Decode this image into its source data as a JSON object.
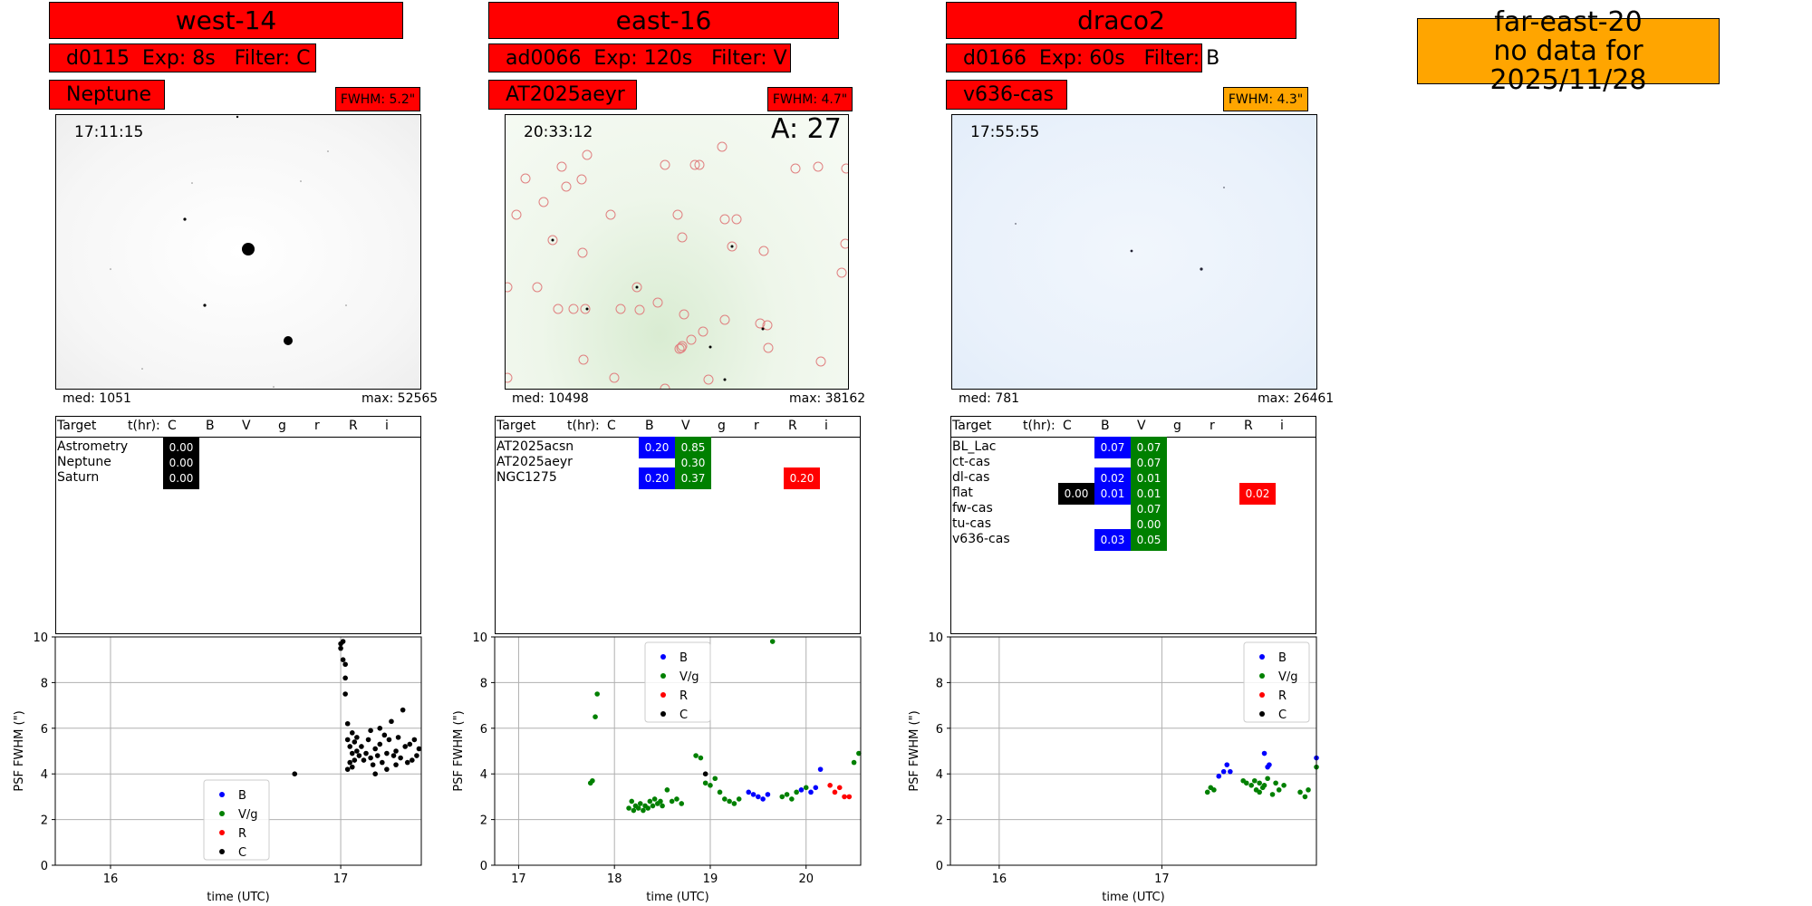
{
  "colors": {
    "header_red": "#ff0000",
    "header_orange": "#ffa500",
    "B": "#0000ff",
    "V": "#008000",
    "R": "#ff0000",
    "C": "#000000"
  },
  "far": {
    "line1": "far-east-20",
    "line2": "no data for 2025/11/28"
  },
  "panels": [
    {
      "title": "west-14",
      "exposure": "d0115  Exp: 8s   Filter: C",
      "target": "Neptune",
      "fwhm": "FWHM: 5.2\"",
      "fwhm_color": "red",
      "timestamp": "17:11:15",
      "annotation": "",
      "image_tint": "gray",
      "med": "med: 1051",
      "max": "max: 52565",
      "table": {
        "headers": [
          "Target",
          "t(hr):",
          "C",
          "B",
          "V",
          "g",
          "r",
          "R",
          "i"
        ],
        "rows": [
          {
            "name": "Astrometry",
            "cells": [
              {
                "col": "C",
                "value": "0.00"
              }
            ]
          },
          {
            "name": "Neptune",
            "cells": [
              {
                "col": "C",
                "value": "0.00"
              }
            ]
          },
          {
            "name": "Saturn",
            "cells": [
              {
                "col": "C",
                "value": "0.00"
              }
            ]
          }
        ]
      },
      "legend_position": "lower-center"
    },
    {
      "title": "east-16",
      "exposure": "ad0066  Exp: 120s   Filter: V",
      "target": "AT2025aeyr",
      "fwhm": "FWHM: 4.7\"",
      "fwhm_color": "red",
      "timestamp": "20:33:12",
      "annotation": "A: 27",
      "image_tint": "green",
      "med": "med: 10498",
      "max": "max: 38162",
      "table": {
        "headers": [
          "Target",
          "t(hr):",
          "C",
          "B",
          "V",
          "g",
          "r",
          "R",
          "i"
        ],
        "rows": [
          {
            "name": "AT2025acsn",
            "cells": [
              {
                "col": "B",
                "value": "0.20"
              },
              {
                "col": "V",
                "value": "0.85"
              }
            ]
          },
          {
            "name": "AT2025aeyr",
            "cells": [
              {
                "col": "V",
                "value": "0.30"
              }
            ]
          },
          {
            "name": "NGC1275",
            "cells": [
              {
                "col": "B",
                "value": "0.20"
              },
              {
                "col": "V",
                "value": "0.37"
              },
              {
                "col": "R",
                "value": "0.20"
              }
            ]
          }
        ]
      },
      "legend_position": "upper-center"
    },
    {
      "title": "draco2",
      "exposure": "d0166  Exp: 60s   Filter: B",
      "target": "v636-cas",
      "fwhm": "FWHM: 4.3\"",
      "fwhm_color": "orange",
      "timestamp": "17:55:55",
      "annotation": "",
      "image_tint": "blue",
      "med": "med: 781",
      "max": "max: 26461",
      "table": {
        "headers": [
          "Target",
          "t(hr):",
          "C",
          "B",
          "V",
          "g",
          "r",
          "R",
          "i"
        ],
        "rows": [
          {
            "name": "BL_Lac",
            "cells": [
              {
                "col": "B",
                "value": "0.07"
              },
              {
                "col": "V",
                "value": "0.07"
              }
            ]
          },
          {
            "name": "ct-cas",
            "cells": [
              {
                "col": "V",
                "value": "0.07"
              }
            ]
          },
          {
            "name": "dl-cas",
            "cells": [
              {
                "col": "B",
                "value": "0.02"
              },
              {
                "col": "V",
                "value": "0.01"
              }
            ]
          },
          {
            "name": "flat",
            "cells": [
              {
                "col": "C",
                "value": "0.00"
              },
              {
                "col": "B",
                "value": "0.01"
              },
              {
                "col": "V",
                "value": "0.01"
              },
              {
                "col": "R",
                "value": "0.02"
              }
            ]
          },
          {
            "name": "fw-cas",
            "cells": [
              {
                "col": "V",
                "value": "0.07"
              }
            ]
          },
          {
            "name": "tu-cas",
            "cells": [
              {
                "col": "V",
                "value": "0.00"
              }
            ]
          },
          {
            "name": "v636-cas",
            "cells": [
              {
                "col": "B",
                "value": "0.03"
              },
              {
                "col": "V",
                "value": "0.05"
              }
            ]
          }
        ]
      },
      "legend_position": "upper-right"
    }
  ],
  "chart_data": [
    {
      "type": "scatter",
      "ylabel": "PSF FWHM (\")",
      "xlabel": "time (UTC)",
      "xlim": [
        15.76,
        17.35
      ],
      "ylim": [
        0,
        10
      ],
      "xticks": [
        16,
        17
      ],
      "yticks": [
        0,
        2,
        4,
        6,
        8,
        10
      ],
      "grid": true,
      "legend": [
        "B",
        "V/g",
        "R",
        "C"
      ],
      "series": [
        {
          "name": "B",
          "x": [],
          "y": []
        },
        {
          "name": "V/g",
          "x": [],
          "y": []
        },
        {
          "name": "R",
          "x": [],
          "y": []
        },
        {
          "name": "C",
          "x": [
            16.8,
            17.0,
            17.0,
            17.01,
            17.01,
            17.02,
            17.02,
            17.02,
            17.03,
            17.03,
            17.03,
            17.04,
            17.04,
            17.05,
            17.05,
            17.05,
            17.06,
            17.06,
            17.07,
            17.07,
            17.08,
            17.09,
            17.1,
            17.11,
            17.12,
            17.13,
            17.13,
            17.14,
            17.15,
            17.15,
            17.16,
            17.17,
            17.17,
            17.18,
            17.19,
            17.2,
            17.2,
            17.21,
            17.22,
            17.23,
            17.24,
            17.24,
            17.25,
            17.26,
            17.27,
            17.28,
            17.29,
            17.3,
            17.31,
            17.32,
            17.33,
            17.34
          ],
          "y": [
            4.0,
            9.7,
            9.5,
            9.8,
            9.0,
            8.2,
            8.8,
            7.5,
            4.2,
            5.5,
            6.2,
            4.5,
            5.2,
            4.3,
            5.8,
            4.9,
            5.4,
            4.6,
            5.0,
            5.6,
            4.8,
            5.2,
            4.6,
            4.9,
            5.5,
            4.7,
            5.9,
            4.4,
            5.1,
            4.0,
            4.8,
            6.0,
            5.3,
            4.5,
            5.7,
            4.9,
            4.2,
            5.5,
            6.3,
            4.8,
            5.0,
            4.4,
            5.6,
            4.7,
            6.8,
            5.2,
            4.5,
            5.3,
            4.6,
            5.5,
            4.8,
            5.1
          ]
        }
      ]
    },
    {
      "type": "scatter",
      "ylabel": "PSF FWHM (\")",
      "xlabel": "time (UTC)",
      "xlim": [
        16.75,
        20.57
      ],
      "ylim": [
        0,
        10
      ],
      "xticks": [
        17,
        18,
        19,
        20
      ],
      "yticks": [
        0,
        2,
        4,
        6,
        8,
        10
      ],
      "grid": true,
      "legend": [
        "B",
        "V/g",
        "R",
        "C"
      ],
      "series": [
        {
          "name": "B",
          "x": [
            19.4,
            19.45,
            19.5,
            19.55,
            19.6,
            19.95,
            20.05,
            20.1,
            20.15
          ],
          "y": [
            3.2,
            3.1,
            3.0,
            2.9,
            3.1,
            3.3,
            3.2,
            3.4,
            4.2
          ]
        },
        {
          "name": "V/g",
          "x": [
            17.75,
            17.77,
            17.8,
            17.82,
            18.15,
            18.18,
            18.2,
            18.22,
            18.25,
            18.27,
            18.3,
            18.32,
            18.35,
            18.37,
            18.4,
            18.42,
            18.45,
            18.48,
            18.5,
            18.55,
            18.6,
            18.65,
            18.7,
            18.85,
            18.9,
            18.95,
            19.0,
            19.05,
            19.1,
            19.15,
            19.2,
            19.25,
            19.3,
            19.65,
            19.75,
            19.8,
            19.85,
            19.9,
            20.0,
            20.5,
            20.55
          ],
          "y": [
            3.6,
            3.7,
            6.5,
            7.5,
            2.5,
            2.8,
            2.4,
            2.6,
            2.5,
            2.7,
            2.4,
            2.6,
            2.5,
            2.8,
            2.6,
            2.9,
            2.7,
            2.8,
            2.6,
            3.3,
            2.8,
            2.9,
            2.7,
            4.8,
            4.7,
            3.6,
            3.5,
            3.8,
            3.2,
            2.9,
            2.8,
            2.7,
            2.9,
            9.8,
            3.0,
            3.1,
            2.9,
            3.2,
            3.4,
            4.5,
            4.9
          ]
        },
        {
          "name": "R",
          "x": [
            20.25,
            20.3,
            20.35,
            20.4,
            20.45
          ],
          "y": [
            3.5,
            3.2,
            3.4,
            3.0,
            3.0
          ]
        },
        {
          "name": "C",
          "x": [
            18.95
          ],
          "y": [
            4.0
          ]
        }
      ]
    },
    {
      "type": "scatter",
      "ylabel": "PSF FWHM (\")",
      "xlabel": "time (UTC)",
      "xlim": [
        15.7,
        17.95
      ],
      "ylim": [
        0,
        10
      ],
      "xticks": [
        16,
        17
      ],
      "yticks": [
        0,
        2,
        4,
        6,
        8,
        10
      ],
      "grid": true,
      "legend": [
        "B",
        "V/g",
        "R",
        "C"
      ],
      "series": [
        {
          "name": "B",
          "x": [
            17.35,
            17.38,
            17.4,
            17.42,
            17.63,
            17.65,
            17.66,
            17.95
          ],
          "y": [
            3.9,
            4.1,
            4.4,
            4.1,
            4.9,
            4.3,
            4.4,
            4.7
          ]
        },
        {
          "name": "V/g",
          "x": [
            17.28,
            17.3,
            17.32,
            17.5,
            17.52,
            17.55,
            17.57,
            17.58,
            17.6,
            17.6,
            17.62,
            17.63,
            17.65,
            17.68,
            17.7,
            17.72,
            17.75,
            17.85,
            17.88,
            17.9,
            17.95
          ],
          "y": [
            3.2,
            3.4,
            3.3,
            3.7,
            3.6,
            3.5,
            3.7,
            3.3,
            3.6,
            3.2,
            3.4,
            3.5,
            3.8,
            3.1,
            3.6,
            3.3,
            3.5,
            3.2,
            3.0,
            3.3,
            4.3
          ]
        },
        {
          "name": "R",
          "x": [],
          "y": []
        },
        {
          "name": "C",
          "x": [],
          "y": []
        }
      ]
    }
  ]
}
